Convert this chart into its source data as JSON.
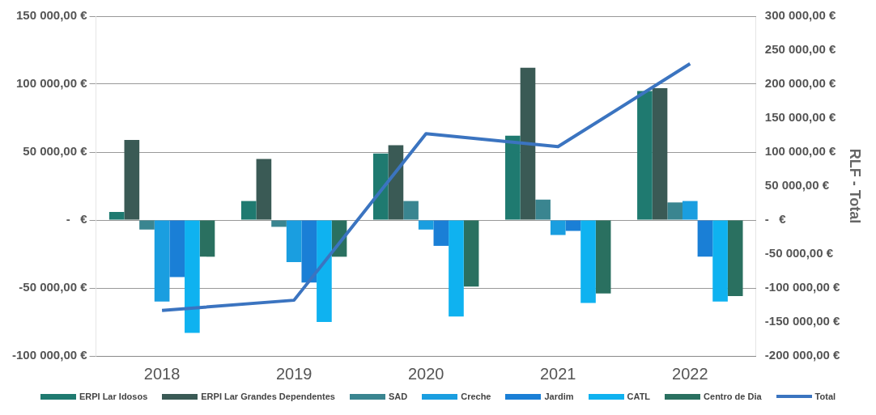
{
  "chart_data": {
    "type": "bar",
    "categories": [
      "2018",
      "2019",
      "2020",
      "2021",
      "2022"
    ],
    "y2label": "RLF - Total",
    "legend": "bottom",
    "grid": "y",
    "ylim": [
      -100000,
      150000
    ],
    "yticks": [
      {
        "value": -100000,
        "label": "-100 000,00 €"
      },
      {
        "value": -50000,
        "label": "-50 000,00 €"
      },
      {
        "value": 0,
        "label": "-   €"
      },
      {
        "value": 50000,
        "label": "50 000,00 €"
      },
      {
        "value": 100000,
        "label": "100 000,00 €"
      },
      {
        "value": 150000,
        "label": "150 000,00 €"
      }
    ],
    "y2lim": [
      -200000,
      300000
    ],
    "y2ticks": [
      {
        "value": -200000,
        "label": "-200 000,00 €"
      },
      {
        "value": -150000,
        "label": "-150 000,00 €"
      },
      {
        "value": -100000,
        "label": "-100 000,00 €"
      },
      {
        "value": -50000,
        "label": "-50 000,00 €"
      },
      {
        "value": 0,
        "label": "-   €"
      },
      {
        "value": 50000,
        "label": "50 000,00 €"
      },
      {
        "value": 100000,
        "label": "100 000,00 €"
      },
      {
        "value": 150000,
        "label": "150 000,00 €"
      },
      {
        "value": 200000,
        "label": "200 000,00 €"
      },
      {
        "value": 250000,
        "label": "250 000,00 €"
      },
      {
        "value": 300000,
        "label": "300 000,00 €"
      }
    ],
    "series": [
      {
        "name": "ERPI Lar Idosos",
        "color": "#1f7a70",
        "values": [
          6000,
          14000,
          49000,
          62000,
          95000
        ]
      },
      {
        "name": "ERPI Lar Grandes Dependentes",
        "color": "#3a5a55",
        "values": [
          59000,
          45000,
          55000,
          112000,
          97000
        ]
      },
      {
        "name": "SAD",
        "color": "#3a8590",
        "values": [
          -7000,
          -5000,
          14000,
          15000,
          13000
        ]
      },
      {
        "name": "Creche",
        "color": "#1a9ee0",
        "values": [
          -60000,
          -31000,
          -7000,
          -11000,
          14000
        ]
      },
      {
        "name": "Jardim",
        "color": "#1a7fd6",
        "values": [
          -42000,
          -46000,
          -19000,
          -8000,
          -27000
        ]
      },
      {
        "name": "CATL",
        "color": "#0fb2f0",
        "values": [
          -83000,
          -75000,
          -71000,
          -61000,
          -60000
        ]
      },
      {
        "name": "Centro de Dia",
        "color": "#2a7060",
        "values": [
          -27000,
          -27000,
          -49000,
          -54000,
          -56000
        ]
      },
      {
        "name": "Total",
        "type": "line",
        "axis": "y2",
        "color": "#3b74c0",
        "values": [
          -133000,
          -118000,
          127000,
          108000,
          230000
        ]
      }
    ]
  }
}
